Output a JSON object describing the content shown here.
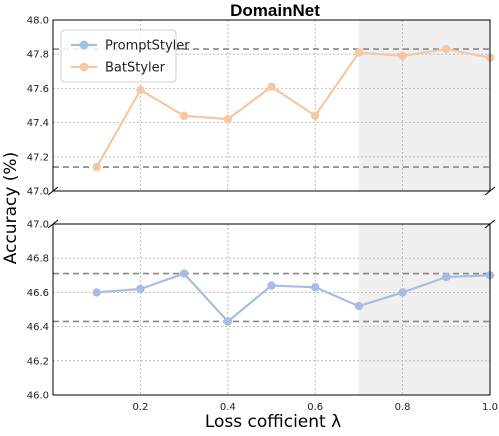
{
  "chart_data": {
    "type": "line",
    "title": "DomainNet",
    "xlabel": "Loss cofficient λ",
    "ylabel": "Accuracy (%)",
    "x": [
      0.1,
      0.2,
      0.3,
      0.4,
      0.5,
      0.6,
      0.7,
      0.8,
      0.9,
      1.0
    ],
    "xlim": [
      0.0,
      1.0
    ],
    "x_ticks": [
      "0.2",
      "0.4",
      "0.6",
      "0.8",
      "1.0"
    ],
    "axis_break": true,
    "grid": true,
    "legend_position": "top-left",
    "shaded_x_range": [
      0.7,
      1.0
    ],
    "panels": [
      {
        "ylim": [
          47.0,
          48.0
        ],
        "y_ticks": [
          "47.0",
          "47.2",
          "47.4",
          "47.6",
          "47.8",
          "48.0"
        ],
        "series_name": "BatStyler",
        "reference_lines": [
          47.14,
          47.83
        ]
      },
      {
        "ylim": [
          46.0,
          47.0
        ],
        "y_ticks": [
          "46.0",
          "46.2",
          "46.4",
          "46.6",
          "46.8",
          "47.0"
        ],
        "series_name": "PromptStyler",
        "reference_lines": [
          46.43,
          46.71
        ]
      }
    ],
    "series": [
      {
        "name": "PromptStyler",
        "color": "#a7bde3",
        "values": [
          46.6,
          46.62,
          46.71,
          46.43,
          46.64,
          46.63,
          46.52,
          46.6,
          46.69,
          46.7
        ]
      },
      {
        "name": "BatStyler",
        "color": "#f6c7a2",
        "values": [
          47.14,
          47.59,
          47.44,
          47.42,
          47.61,
          47.44,
          47.81,
          47.79,
          47.83,
          47.78
        ]
      }
    ]
  }
}
